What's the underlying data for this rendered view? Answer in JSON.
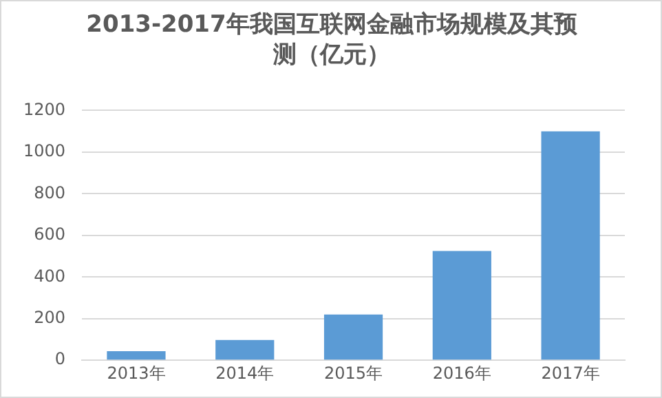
{
  "chart_data": {
    "type": "bar",
    "title": "2013-2017年我国互联网金融市场规模及其预测（亿元）",
    "categories": [
      "2013年",
      "2014年",
      "2015年",
      "2016年",
      "2017年"
    ],
    "values": [
      44,
      97,
      220,
      525,
      1100
    ],
    "color": "#5b9bd5",
    "ylim": [
      0,
      1200
    ],
    "yticks": [
      0,
      200,
      400,
      600,
      800,
      1000,
      1200
    ],
    "grid": "y"
  }
}
